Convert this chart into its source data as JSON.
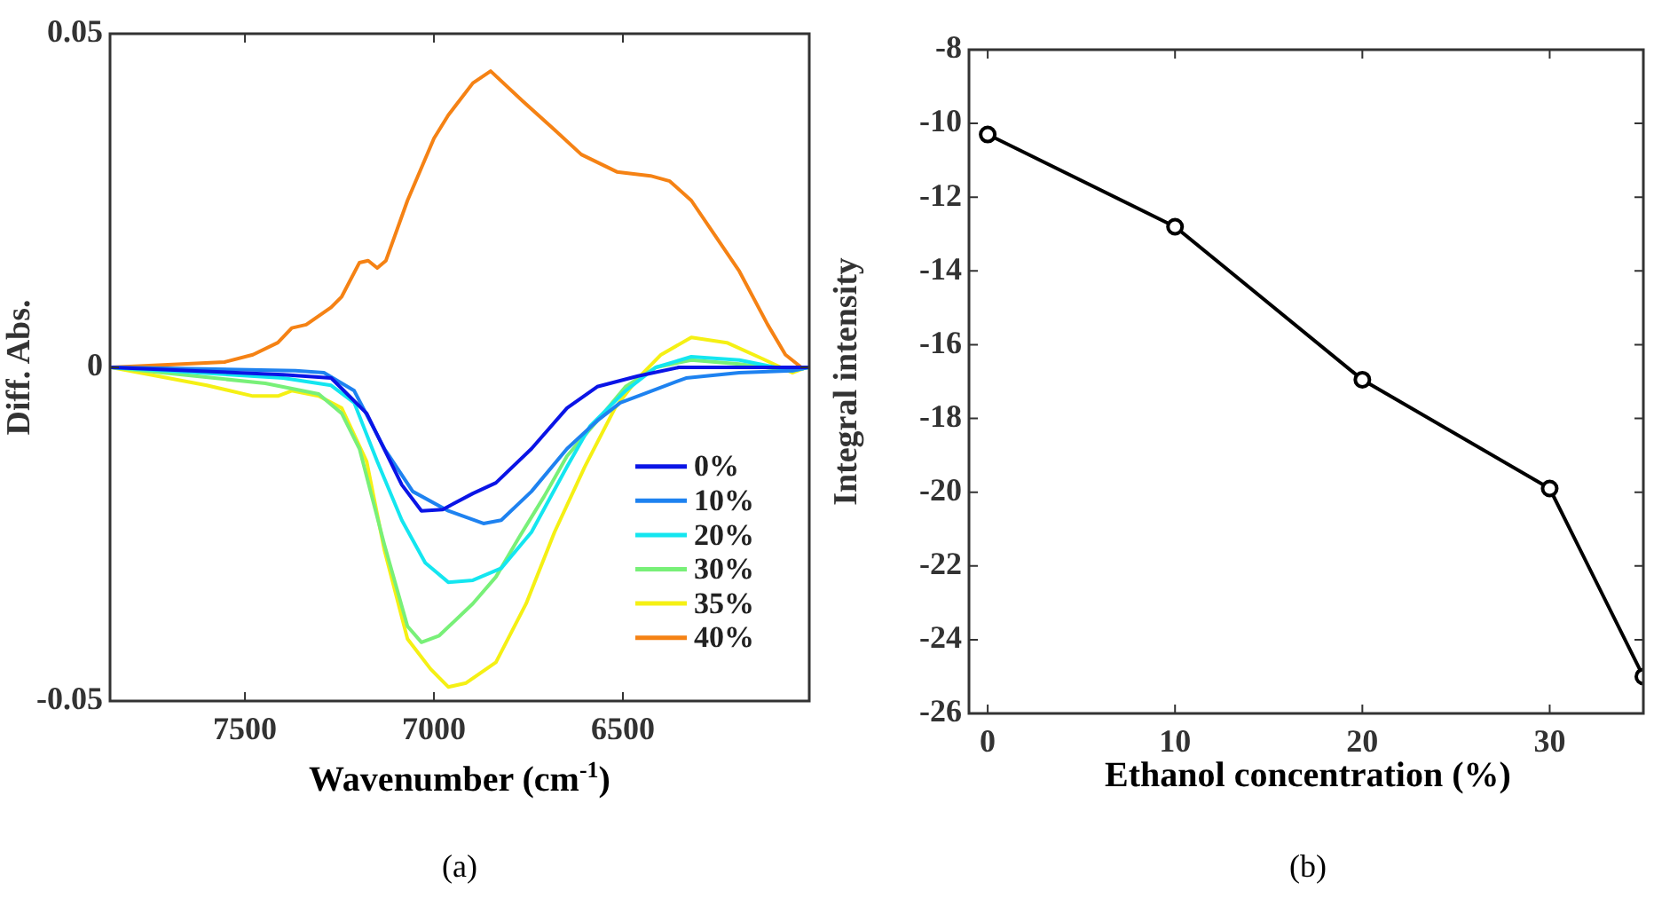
{
  "chart_data": [
    {
      "type": "line",
      "xlabel": "Wavenumber (cm$^{-1}$)",
      "ylabel": "Diff. Abs.",
      "xlim": [
        7857,
        6007
      ],
      "xticks": [
        7500,
        7000,
        6500
      ],
      "ylim": [
        -0.05,
        0.05
      ],
      "yticks": [
        -0.05,
        0,
        0.05
      ],
      "marker": "none",
      "legend": "bottom right",
      "annotations": [
        "(a)"
      ],
      "series": [
        {
          "name": "0%",
          "color": "#0a14e6",
          "x": [
            7854,
            7399,
            7272,
            7178,
            7085,
            7033,
            6977,
            6897,
            6836,
            6742,
            6648,
            6568,
            6460,
            6352,
            6023,
            6009
          ],
          "values": [
            0,
            -0.0011,
            -0.0016,
            -0.0069,
            -0.0176,
            -0.0215,
            -0.0213,
            -0.0189,
            -0.0173,
            -0.0122,
            -0.0061,
            -0.0029,
            -0.0013,
            0,
            0,
            0
          ]
        },
        {
          "name": "10%",
          "color": "#1e82f0",
          "x": [
            7854,
            7366,
            7291,
            7211,
            7131,
            7056,
            6962,
            6869,
            6822,
            6742,
            6648,
            6568,
            6507,
            6446,
            6333,
            6192,
            6052,
            6009
          ],
          "values": [
            0,
            -0.0005,
            -0.0008,
            -0.0035,
            -0.0122,
            -0.0186,
            -0.0215,
            -0.0234,
            -0.0229,
            -0.0186,
            -0.0122,
            -0.008,
            -0.0053,
            -0.004,
            -0.0016,
            -0.0008,
            -0.0005,
            0
          ]
        },
        {
          "name": "20%",
          "color": "#14e6f0",
          "x": [
            7854,
            7399,
            7272,
            7211,
            7150,
            7085,
            7023,
            6962,
            6897,
            6822,
            6742,
            6648,
            6587,
            6493,
            6413,
            6319,
            6192,
            6052,
            6009
          ],
          "values": [
            0,
            -0.0016,
            -0.0027,
            -0.0053,
            -0.0141,
            -0.0229,
            -0.0293,
            -0.0322,
            -0.0319,
            -0.0301,
            -0.0247,
            -0.0149,
            -0.0088,
            -0.0035,
            0,
            0.0016,
            0.0011,
            -0.0005,
            0
          ]
        },
        {
          "name": "30%",
          "color": "#78f078",
          "x": [
            7854,
            7446,
            7305,
            7244,
            7197,
            7131,
            7070,
            7033,
            6986,
            6897,
            6836,
            6775,
            6709,
            6648,
            6568,
            6493,
            6413,
            6319,
            6192,
            6052,
            6009
          ],
          "values": [
            0,
            -0.0024,
            -0.004,
            -0.0069,
            -0.0122,
            -0.0266,
            -0.0388,
            -0.0412,
            -0.0402,
            -0.0354,
            -0.0314,
            -0.0255,
            -0.0194,
            -0.0133,
            -0.008,
            -0.0029,
            0,
            0.0011,
            0.0005,
            -0.0005,
            0
          ]
        },
        {
          "name": "35%",
          "color": "#f5f014",
          "x": [
            7854,
            7601,
            7479,
            7413,
            7376,
            7305,
            7244,
            7178,
            7131,
            7070,
            7009,
            6962,
            6915,
            6836,
            6756,
            6681,
            6601,
            6521,
            6460,
            6399,
            6319,
            6225,
            6131,
            6052,
            6014
          ],
          "values": [
            0,
            -0.0027,
            -0.0043,
            -0.0043,
            -0.0035,
            -0.0043,
            -0.0061,
            -0.0141,
            -0.0274,
            -0.0407,
            -0.0452,
            -0.0479,
            -0.0473,
            -0.0442,
            -0.0354,
            -0.0247,
            -0.0149,
            -0.0061,
            -0.0016,
            0.0019,
            0.0045,
            0.0037,
            0.0013,
            -0.0008,
            0
          ]
        },
        {
          "name": "40%",
          "color": "#f58214",
          "x": [
            7854,
            7554,
            7479,
            7413,
            7376,
            7338,
            7272,
            7244,
            7197,
            7174,
            7150,
            7127,
            7070,
            7000,
            6962,
            6897,
            6850,
            6765,
            6681,
            6610,
            6516,
            6427,
            6376,
            6319,
            6192,
            6117,
            6070,
            6028,
            6009
          ],
          "values": [
            0,
            0.0008,
            0.0019,
            0.0037,
            0.0059,
            0.0064,
            0.009,
            0.0106,
            0.0157,
            0.016,
            0.0149,
            0.016,
            0.025,
            0.0343,
            0.0378,
            0.0426,
            0.0444,
            0.0399,
            0.0356,
            0.0319,
            0.0293,
            0.0287,
            0.0279,
            0.025,
            0.0144,
            0.0064,
            0.0019,
            0,
            0
          ]
        }
      ]
    },
    {
      "type": "line",
      "xlabel": "Ethanol concentration (%)",
      "ylabel": "Integral intensity",
      "xlim": [
        -1,
        35
      ],
      "xticks": [
        0,
        10,
        20,
        30
      ],
      "ylim": [
        -26,
        -8
      ],
      "yticks": [
        -26,
        -24,
        -22,
        -20,
        -18,
        -16,
        -14,
        -12,
        -10,
        -8
      ],
      "marker": "circle",
      "annotations": [
        "(b)"
      ],
      "series": [
        {
          "color": "#000000",
          "x": [
            0,
            10,
            20,
            30,
            35
          ],
          "values": [
            -10.3,
            -12.8,
            -16.95,
            -19.9,
            -25
          ]
        }
      ]
    }
  ]
}
